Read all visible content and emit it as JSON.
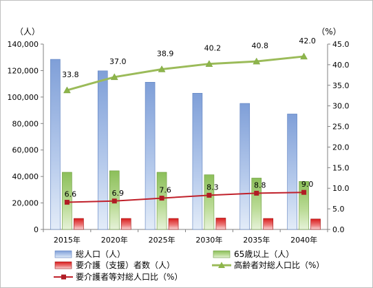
{
  "chart_data": {
    "type": "bar",
    "categories": [
      "2015年",
      "2020年",
      "2025年",
      "2030年",
      "2035年",
      "2040年"
    ],
    "y_left": {
      "unit_label": "（人）",
      "range": [
        0,
        140000
      ],
      "step": 20000,
      "tick_labels": [
        "0",
        "20,000",
        "40,000",
        "60,000",
        "80,000",
        "100,000",
        "120,000",
        "140,000"
      ]
    },
    "y_right": {
      "unit_label": "（%）",
      "range": [
        0,
        45
      ],
      "step": 5,
      "tick_labels": [
        "0.0",
        "5.0",
        "10.0",
        "15.0",
        "20.0",
        "25.0",
        "30.0",
        "35.0",
        "40.0",
        "45.0"
      ]
    },
    "grid": false,
    "legend_position": "bottom",
    "series": [
      {
        "name": "総人口（人）",
        "type": "bar",
        "axis": "left",
        "values": [
          128500,
          119800,
          111200,
          102900,
          95200,
          87200
        ],
        "color": "#8eb0de"
      },
      {
        "name": "65歳以上（人）",
        "type": "bar",
        "axis": "left",
        "values": [
          43200,
          44300,
          43200,
          41300,
          38800,
          36300
        ],
        "color": "#9bc66b"
      },
      {
        "name": "要介護（支援）者数（人）",
        "type": "bar",
        "axis": "left",
        "values": [
          8300,
          8300,
          8300,
          8600,
          8300,
          7900
        ],
        "color": "#e02020"
      },
      {
        "name": "高齢者対総人口比（%）",
        "type": "line",
        "axis": "right",
        "values": [
          33.8,
          37.0,
          38.9,
          40.2,
          40.8,
          42.0
        ],
        "data_labels": [
          "33.8",
          "37.0",
          "38.9",
          "40.2",
          "40.8",
          "42.0"
        ],
        "color": "#9bbb59",
        "marker": "triangle"
      },
      {
        "name": "要介護者等対総人口比（%）",
        "type": "line",
        "axis": "right",
        "values": [
          6.6,
          6.9,
          7.6,
          8.3,
          8.8,
          9.0
        ],
        "data_labels": [
          "6.6",
          "6.9",
          "7.6",
          "8.3",
          "8.8",
          "9.0"
        ],
        "color": "#c0202a",
        "marker": "square"
      }
    ]
  }
}
